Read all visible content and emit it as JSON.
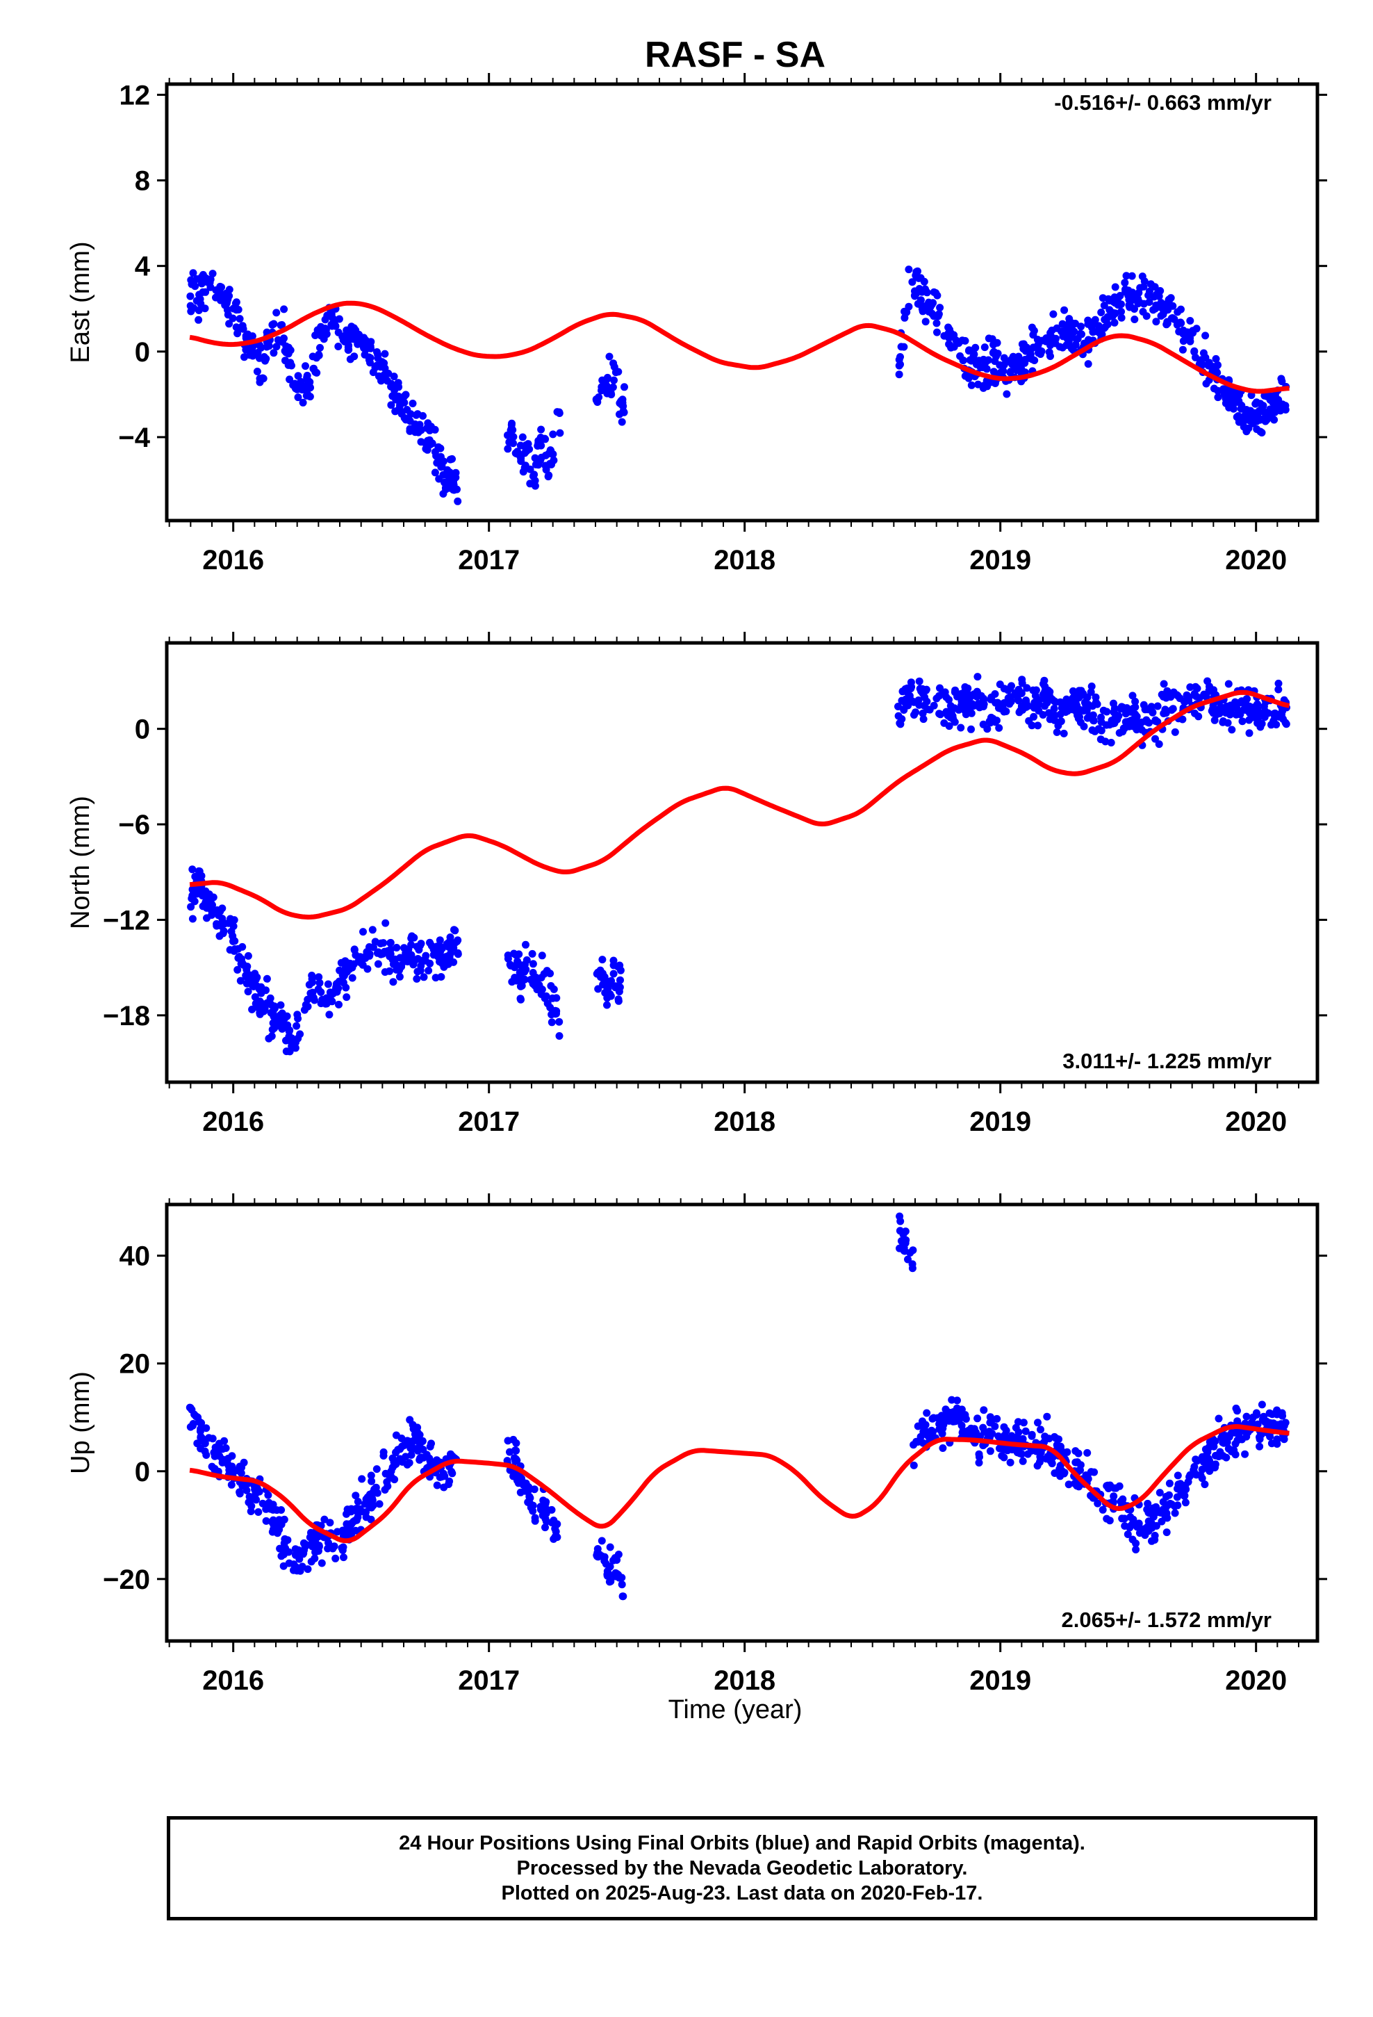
{
  "title": "RASF - SA",
  "xlabel": "Time (year)",
  "colors": {
    "final_orbits": "#0000ff",
    "model": "#ff0000",
    "axes": "#000000"
  },
  "caption": {
    "line1": "24 Hour Positions Using Final Orbits (blue) and Rapid Orbits (magenta).",
    "line2": "Processed by the Nevada Geodetic Laboratory.",
    "line3": "Plotted on 2025-Aug-23. Last data on 2020-Feb-17."
  },
  "chart_data": [
    {
      "type": "scatter",
      "title": "RASF - SA",
      "ylabel": "East (mm)",
      "annotation": "-0.516+/- 0.663 mm/yr",
      "annotation_position": "top-right",
      "xlim": [
        2015.74,
        2020.24
      ],
      "ylim": [
        -7.9,
        12.5
      ],
      "xticks": [
        2016,
        2017,
        2018,
        2019,
        2020
      ],
      "xtick_labels": [
        "2016",
        "2017",
        "2018",
        "2019",
        "2020"
      ],
      "yticks": [
        -4,
        0,
        4,
        8,
        12
      ],
      "ytick_labels": [
        "−4",
        "0",
        "4",
        "8",
        "12"
      ],
      "model_curve": {
        "x": [
          2015.83,
          2015.92,
          2016.0,
          2016.1,
          2016.2,
          2016.3,
          2016.4,
          2016.47,
          2016.55,
          2016.65,
          2016.75,
          2016.85,
          2016.95,
          2017.05,
          2017.15,
          2017.25,
          2017.35,
          2017.47,
          2017.6,
          2017.75,
          2017.9,
          2018.05,
          2018.2,
          2018.35,
          2018.47,
          2018.6,
          2018.75,
          2018.9,
          2019.0,
          2019.1,
          2019.2,
          2019.3,
          2019.4,
          2019.48,
          2019.6,
          2019.7,
          2019.8,
          2019.9,
          2020.0,
          2020.13
        ],
        "y": [
          0.7,
          0.4,
          0.3,
          0.5,
          1.0,
          1.7,
          2.2,
          2.3,
          2.1,
          1.5,
          0.8,
          0.2,
          -0.2,
          -0.25,
          0.0,
          0.6,
          1.3,
          1.8,
          1.5,
          0.4,
          -0.5,
          -0.8,
          -0.3,
          0.6,
          1.3,
          0.9,
          -0.2,
          -1.0,
          -1.3,
          -1.2,
          -0.8,
          -0.1,
          0.6,
          0.8,
          0.4,
          -0.3,
          -1.0,
          -1.6,
          -1.9,
          -1.7
        ]
      },
      "segments": [
        {
          "x0": 2015.83,
          "x1": 2016.88,
          "values": [
            3.0,
            2.5,
            3.5,
            3.2,
            2.0,
            1.5,
            0.5,
            0.0,
            -0.5,
            0.5,
            1.0,
            -1.0,
            -2.0,
            -1.5,
            0.5,
            1.5,
            1.0,
            0.5,
            1.0,
            0.0,
            -0.5,
            -0.5,
            -1.5,
            -2.5,
            -3.0,
            -3.5,
            -4.0,
            -5.0,
            -6.0,
            -6.5
          ]
        },
        {
          "x0": 2017.07,
          "x1": 2017.28,
          "values": [
            -4.5,
            -3.5,
            -5.0,
            -4.5,
            -6.0,
            -4.0,
            -5.5,
            -4.5,
            -3.0
          ]
        },
        {
          "x0": 2017.42,
          "x1": 2017.53,
          "values": [
            -2.5,
            -2.0,
            -1.5,
            -1.0,
            -2.0,
            -2.5
          ]
        },
        {
          "x0": 2018.6,
          "x1": 2020.12,
          "values": [
            -1.0,
            3.5,
            2.5,
            1.5,
            0.5,
            -0.5,
            -1.0,
            -0.5,
            -1.0,
            -0.5,
            0.0,
            0.5,
            0.5,
            1.0,
            0.5,
            1.0,
            2.0,
            2.5,
            2.5,
            2.5,
            2.0,
            1.5,
            0.5,
            -0.5,
            -1.5,
            -2.0,
            -3.0,
            -3.0,
            -2.5,
            -2.0
          ]
        }
      ]
    },
    {
      "type": "scatter",
      "ylabel": "North (mm)",
      "annotation": "3.011+/- 1.225 mm/yr",
      "annotation_position": "bottom-right",
      "xlim": [
        2015.74,
        2020.24
      ],
      "ylim": [
        -22.2,
        5.4
      ],
      "xticks": [
        2016,
        2017,
        2018,
        2019,
        2020
      ],
      "xtick_labels": [
        "2016",
        "2017",
        "2018",
        "2019",
        "2020"
      ],
      "yticks": [
        -18,
        -12,
        -6,
        0
      ],
      "ytick_labels": [
        "−18",
        "−12",
        "−6",
        "0"
      ],
      "model_curve": {
        "x": [
          2015.83,
          2015.95,
          2016.1,
          2016.2,
          2016.3,
          2016.45,
          2016.6,
          2016.75,
          2016.92,
          2017.05,
          2017.2,
          2017.3,
          2017.45,
          2017.6,
          2017.75,
          2017.93,
          2018.1,
          2018.3,
          2018.45,
          2018.6,
          2018.8,
          2018.95,
          2019.1,
          2019.2,
          2019.3,
          2019.45,
          2019.6,
          2019.75,
          2019.95,
          2020.13
        ],
        "y": [
          -9.8,
          -9.6,
          -10.6,
          -11.6,
          -11.9,
          -11.3,
          -9.6,
          -7.6,
          -6.6,
          -7.3,
          -8.6,
          -9.1,
          -8.3,
          -6.3,
          -4.6,
          -3.6,
          -4.8,
          -6.1,
          -5.3,
          -3.3,
          -1.3,
          -0.6,
          -1.6,
          -2.6,
          -2.9,
          -2.1,
          -0.1,
          1.4,
          2.4,
          1.4
        ]
      },
      "segments": [
        {
          "x0": 2015.83,
          "x1": 2016.88,
          "values": [
            -10.5,
            -10.0,
            -11.0,
            -11.5,
            -12.5,
            -14.0,
            -15.5,
            -16.0,
            -17.5,
            -18.0,
            -18.5,
            -19.5,
            -18.0,
            -17.0,
            -16.5,
            -17.0,
            -16.0,
            -15.5,
            -14.5,
            -14.0,
            -13.5,
            -14.0,
            -14.5,
            -14.5,
            -14.0,
            -14.5,
            -14.0,
            -14.5,
            -14.0,
            -13.5
          ]
        },
        {
          "x0": 2017.07,
          "x1": 2017.28,
          "values": [
            -15.0,
            -14.5,
            -15.5,
            -14.0,
            -15.0,
            -16.0,
            -15.5,
            -17.5,
            -18.5
          ]
        },
        {
          "x0": 2017.42,
          "x1": 2017.53,
          "values": [
            -16.0,
            -15.5,
            -16.5,
            -15.0,
            -16.0,
            -15.5
          ]
        },
        {
          "x0": 2018.6,
          "x1": 2020.12,
          "values": [
            1.5,
            2.0,
            1.5,
            2.0,
            1.0,
            1.5,
            2.0,
            1.0,
            1.5,
            2.0,
            1.5,
            2.0,
            1.0,
            1.5,
            1.0,
            0.5,
            0.5,
            1.0,
            0.5,
            0.5,
            1.0,
            1.5,
            1.5,
            2.0,
            1.5,
            1.0,
            1.5,
            1.0,
            1.5,
            1.0
          ]
        }
      ]
    },
    {
      "type": "scatter",
      "ylabel": "Up (mm)",
      "annotation": "2.065+/- 1.572 mm/yr",
      "annotation_position": "bottom-right",
      "xlim": [
        2015.74,
        2020.24
      ],
      "ylim": [
        -31.5,
        49.5
      ],
      "xticks": [
        2016,
        2017,
        2018,
        2019,
        2020
      ],
      "xtick_labels": [
        "2016",
        "2017",
        "2018",
        "2019",
        "2020"
      ],
      "yticks": [
        -20,
        0,
        20,
        40
      ],
      "ytick_labels": [
        "−20",
        "0",
        "20",
        "40"
      ],
      "model_curve": {
        "x": [
          2015.83,
          2015.95,
          2016.1,
          2016.2,
          2016.3,
          2016.45,
          2016.6,
          2016.7,
          2016.85,
          2017.0,
          2017.1,
          2017.22,
          2017.35,
          2017.45,
          2017.55,
          2017.65,
          2017.8,
          2017.95,
          2018.1,
          2018.2,
          2018.3,
          2018.42,
          2018.52,
          2018.62,
          2018.75,
          2018.9,
          2019.05,
          2019.2,
          2019.3,
          2019.45,
          2019.55,
          2019.65,
          2019.75,
          2019.9,
          2020.05,
          2020.13
        ],
        "y": [
          0.3,
          -1.0,
          -1.8,
          -5.0,
          -10.0,
          -13.5,
          -8.0,
          -2.0,
          2.0,
          1.5,
          1.0,
          -3.0,
          -8.0,
          -11.0,
          -6.0,
          0.0,
          4.0,
          3.5,
          3.0,
          0.0,
          -5.0,
          -9.0,
          -6.0,
          1.0,
          6.0,
          5.8,
          5.0,
          4.5,
          -1.0,
          -7.5,
          -5.5,
          0.0,
          5.0,
          8.5,
          7.5,
          7.0
        ]
      },
      "segments": [
        {
          "x0": 2015.83,
          "x1": 2016.88,
          "values": [
            10.0,
            8.0,
            4.0,
            2.0,
            1.0,
            0.0,
            -2.0,
            -4.0,
            -5.0,
            -8.0,
            -12.0,
            -15.0,
            -17.0,
            -14.0,
            -13.0,
            -12.0,
            -14.0,
            -10.0,
            -8.0,
            -6.0,
            -4.0,
            -2.0,
            2.0,
            4.0,
            6.0,
            4.0,
            2.0,
            0.0,
            1.0,
            2.0
          ]
        },
        {
          "x0": 2017.07,
          "x1": 2017.28,
          "values": [
            3.0,
            2.0,
            -1.0,
            -3.0,
            -5.0,
            -7.0,
            -8.0,
            -10.0,
            -12.0
          ]
        },
        {
          "x0": 2017.42,
          "x1": 2017.53,
          "values": [
            -14.0,
            -16.0,
            -18.0,
            -17.0,
            -20.0,
            -22.0
          ]
        },
        {
          "x0": 2018.6,
          "x1": 2018.66,
          "values": [
            47.0,
            43.0,
            40.0,
            37.0
          ]
        },
        {
          "x0": 2018.66,
          "x1": 2020.12,
          "values": [
            5.0,
            8.0,
            7.0,
            10.0,
            8.0,
            6.0,
            7.0,
            5.0,
            6.0,
            4.0,
            5.0,
            3.0,
            2.0,
            0.0,
            -3.0,
            -5.0,
            -7.0,
            -9.0,
            -10.0,
            -8.0,
            -6.0,
            -3.0,
            0.0,
            3.0,
            5.0,
            7.0,
            8.0,
            9.0,
            8.0,
            9.0
          ]
        }
      ]
    }
  ]
}
